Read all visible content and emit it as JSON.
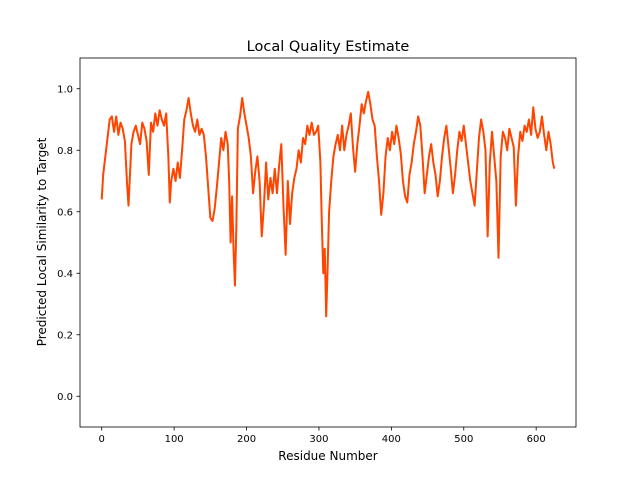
{
  "chart_data": {
    "type": "line",
    "title": "Local Quality Estimate",
    "xlabel": "Residue Number",
    "ylabel": "Predicted Local Similarity to Target",
    "xlim": [
      -30,
      655
    ],
    "ylim": [
      -0.1,
      1.1
    ],
    "x_ticks": [
      0,
      100,
      200,
      300,
      400,
      500,
      600
    ],
    "y_ticks": [
      0.0,
      0.2,
      0.4,
      0.6,
      0.8,
      1.0
    ],
    "x_tick_labels": [
      "0",
      "100",
      "200",
      "300",
      "400",
      "500",
      "600"
    ],
    "y_tick_labels": [
      "0.0",
      "0.2",
      "0.4",
      "0.6",
      "0.8",
      "1.0"
    ],
    "grid": false,
    "series": [
      {
        "color": "#ff4500",
        "x": [
          0,
          2,
          5,
          8,
          11,
          14,
          17,
          20,
          23,
          26,
          29,
          32,
          35,
          37,
          39,
          41,
          44,
          47,
          50,
          53,
          56,
          59,
          62,
          65,
          68,
          71,
          74,
          77,
          80,
          83,
          86,
          89,
          92,
          94,
          96,
          99,
          102,
          105,
          108,
          111,
          114,
          117,
          120,
          123,
          126,
          129,
          132,
          135,
          138,
          141,
          144,
          147,
          150,
          153,
          156,
          159,
          162,
          165,
          168,
          171,
          174,
          176,
          178,
          180,
          182,
          184,
          186,
          188,
          191,
          194,
          197,
          200,
          203,
          206,
          209,
          212,
          215,
          218,
          221,
          224,
          227,
          230,
          233,
          236,
          239,
          242,
          245,
          248,
          251,
          254,
          257,
          260,
          263,
          266,
          269,
          272,
          275,
          278,
          281,
          284,
          287,
          290,
          293,
          296,
          299,
          302,
          304,
          306,
          308,
          310,
          312,
          314,
          317,
          320,
          323,
          326,
          329,
          332,
          335,
          338,
          341,
          344,
          347,
          350,
          353,
          356,
          359,
          362,
          365,
          368,
          371,
          374,
          377,
          380,
          383,
          386,
          389,
          392,
          395,
          398,
          401,
          404,
          407,
          410,
          413,
          416,
          419,
          422,
          425,
          428,
          431,
          434,
          437,
          440,
          443,
          446,
          449,
          452,
          455,
          458,
          461,
          464,
          467,
          470,
          473,
          476,
          479,
          482,
          485,
          488,
          491,
          494,
          497,
          500,
          503,
          506,
          509,
          512,
          515,
          518,
          521,
          524,
          527,
          530,
          533,
          536,
          539,
          542,
          545,
          548,
          551,
          554,
          557,
          560,
          563,
          566,
          569,
          572,
          575,
          578,
          581,
          584,
          587,
          590,
          593,
          596,
          599,
          602,
          605,
          608,
          611,
          614,
          617,
          620,
          623,
          625
        ],
        "y": [
          0.64,
          0.72,
          0.78,
          0.84,
          0.9,
          0.91,
          0.86,
          0.91,
          0.85,
          0.89,
          0.87,
          0.83,
          0.69,
          0.62,
          0.72,
          0.82,
          0.86,
          0.88,
          0.85,
          0.82,
          0.89,
          0.87,
          0.83,
          0.72,
          0.89,
          0.86,
          0.92,
          0.88,
          0.93,
          0.9,
          0.88,
          0.92,
          0.78,
          0.63,
          0.7,
          0.74,
          0.7,
          0.76,
          0.71,
          0.8,
          0.9,
          0.93,
          0.97,
          0.92,
          0.88,
          0.86,
          0.9,
          0.85,
          0.87,
          0.85,
          0.78,
          0.68,
          0.58,
          0.57,
          0.61,
          0.68,
          0.76,
          0.84,
          0.8,
          0.86,
          0.82,
          0.7,
          0.5,
          0.65,
          0.48,
          0.36,
          0.56,
          0.87,
          0.91,
          0.97,
          0.92,
          0.88,
          0.84,
          0.78,
          0.66,
          0.73,
          0.78,
          0.7,
          0.52,
          0.62,
          0.76,
          0.64,
          0.71,
          0.66,
          0.74,
          0.66,
          0.75,
          0.82,
          0.62,
          0.46,
          0.7,
          0.56,
          0.66,
          0.71,
          0.74,
          0.8,
          0.76,
          0.84,
          0.82,
          0.88,
          0.85,
          0.89,
          0.85,
          0.86,
          0.88,
          0.76,
          0.56,
          0.4,
          0.48,
          0.26,
          0.42,
          0.6,
          0.7,
          0.78,
          0.82,
          0.85,
          0.8,
          0.88,
          0.8,
          0.85,
          0.88,
          0.92,
          0.81,
          0.73,
          0.82,
          0.88,
          0.95,
          0.92,
          0.96,
          0.99,
          0.95,
          0.9,
          0.88,
          0.78,
          0.7,
          0.59,
          0.66,
          0.78,
          0.84,
          0.8,
          0.86,
          0.82,
          0.88,
          0.84,
          0.79,
          0.7,
          0.65,
          0.63,
          0.72,
          0.76,
          0.82,
          0.86,
          0.91,
          0.88,
          0.78,
          0.66,
          0.72,
          0.78,
          0.82,
          0.76,
          0.72,
          0.65,
          0.7,
          0.78,
          0.84,
          0.88,
          0.81,
          0.74,
          0.66,
          0.72,
          0.8,
          0.86,
          0.83,
          0.88,
          0.82,
          0.76,
          0.7,
          0.66,
          0.62,
          0.73,
          0.84,
          0.9,
          0.86,
          0.8,
          0.52,
          0.76,
          0.86,
          0.78,
          0.7,
          0.45,
          0.78,
          0.86,
          0.84,
          0.8,
          0.87,
          0.84,
          0.81,
          0.62,
          0.78,
          0.86,
          0.83,
          0.88,
          0.86,
          0.9,
          0.85,
          0.94,
          0.87,
          0.84,
          0.86,
          0.91,
          0.85,
          0.8,
          0.86,
          0.82,
          0.76,
          0.74
        ]
      }
    ]
  }
}
